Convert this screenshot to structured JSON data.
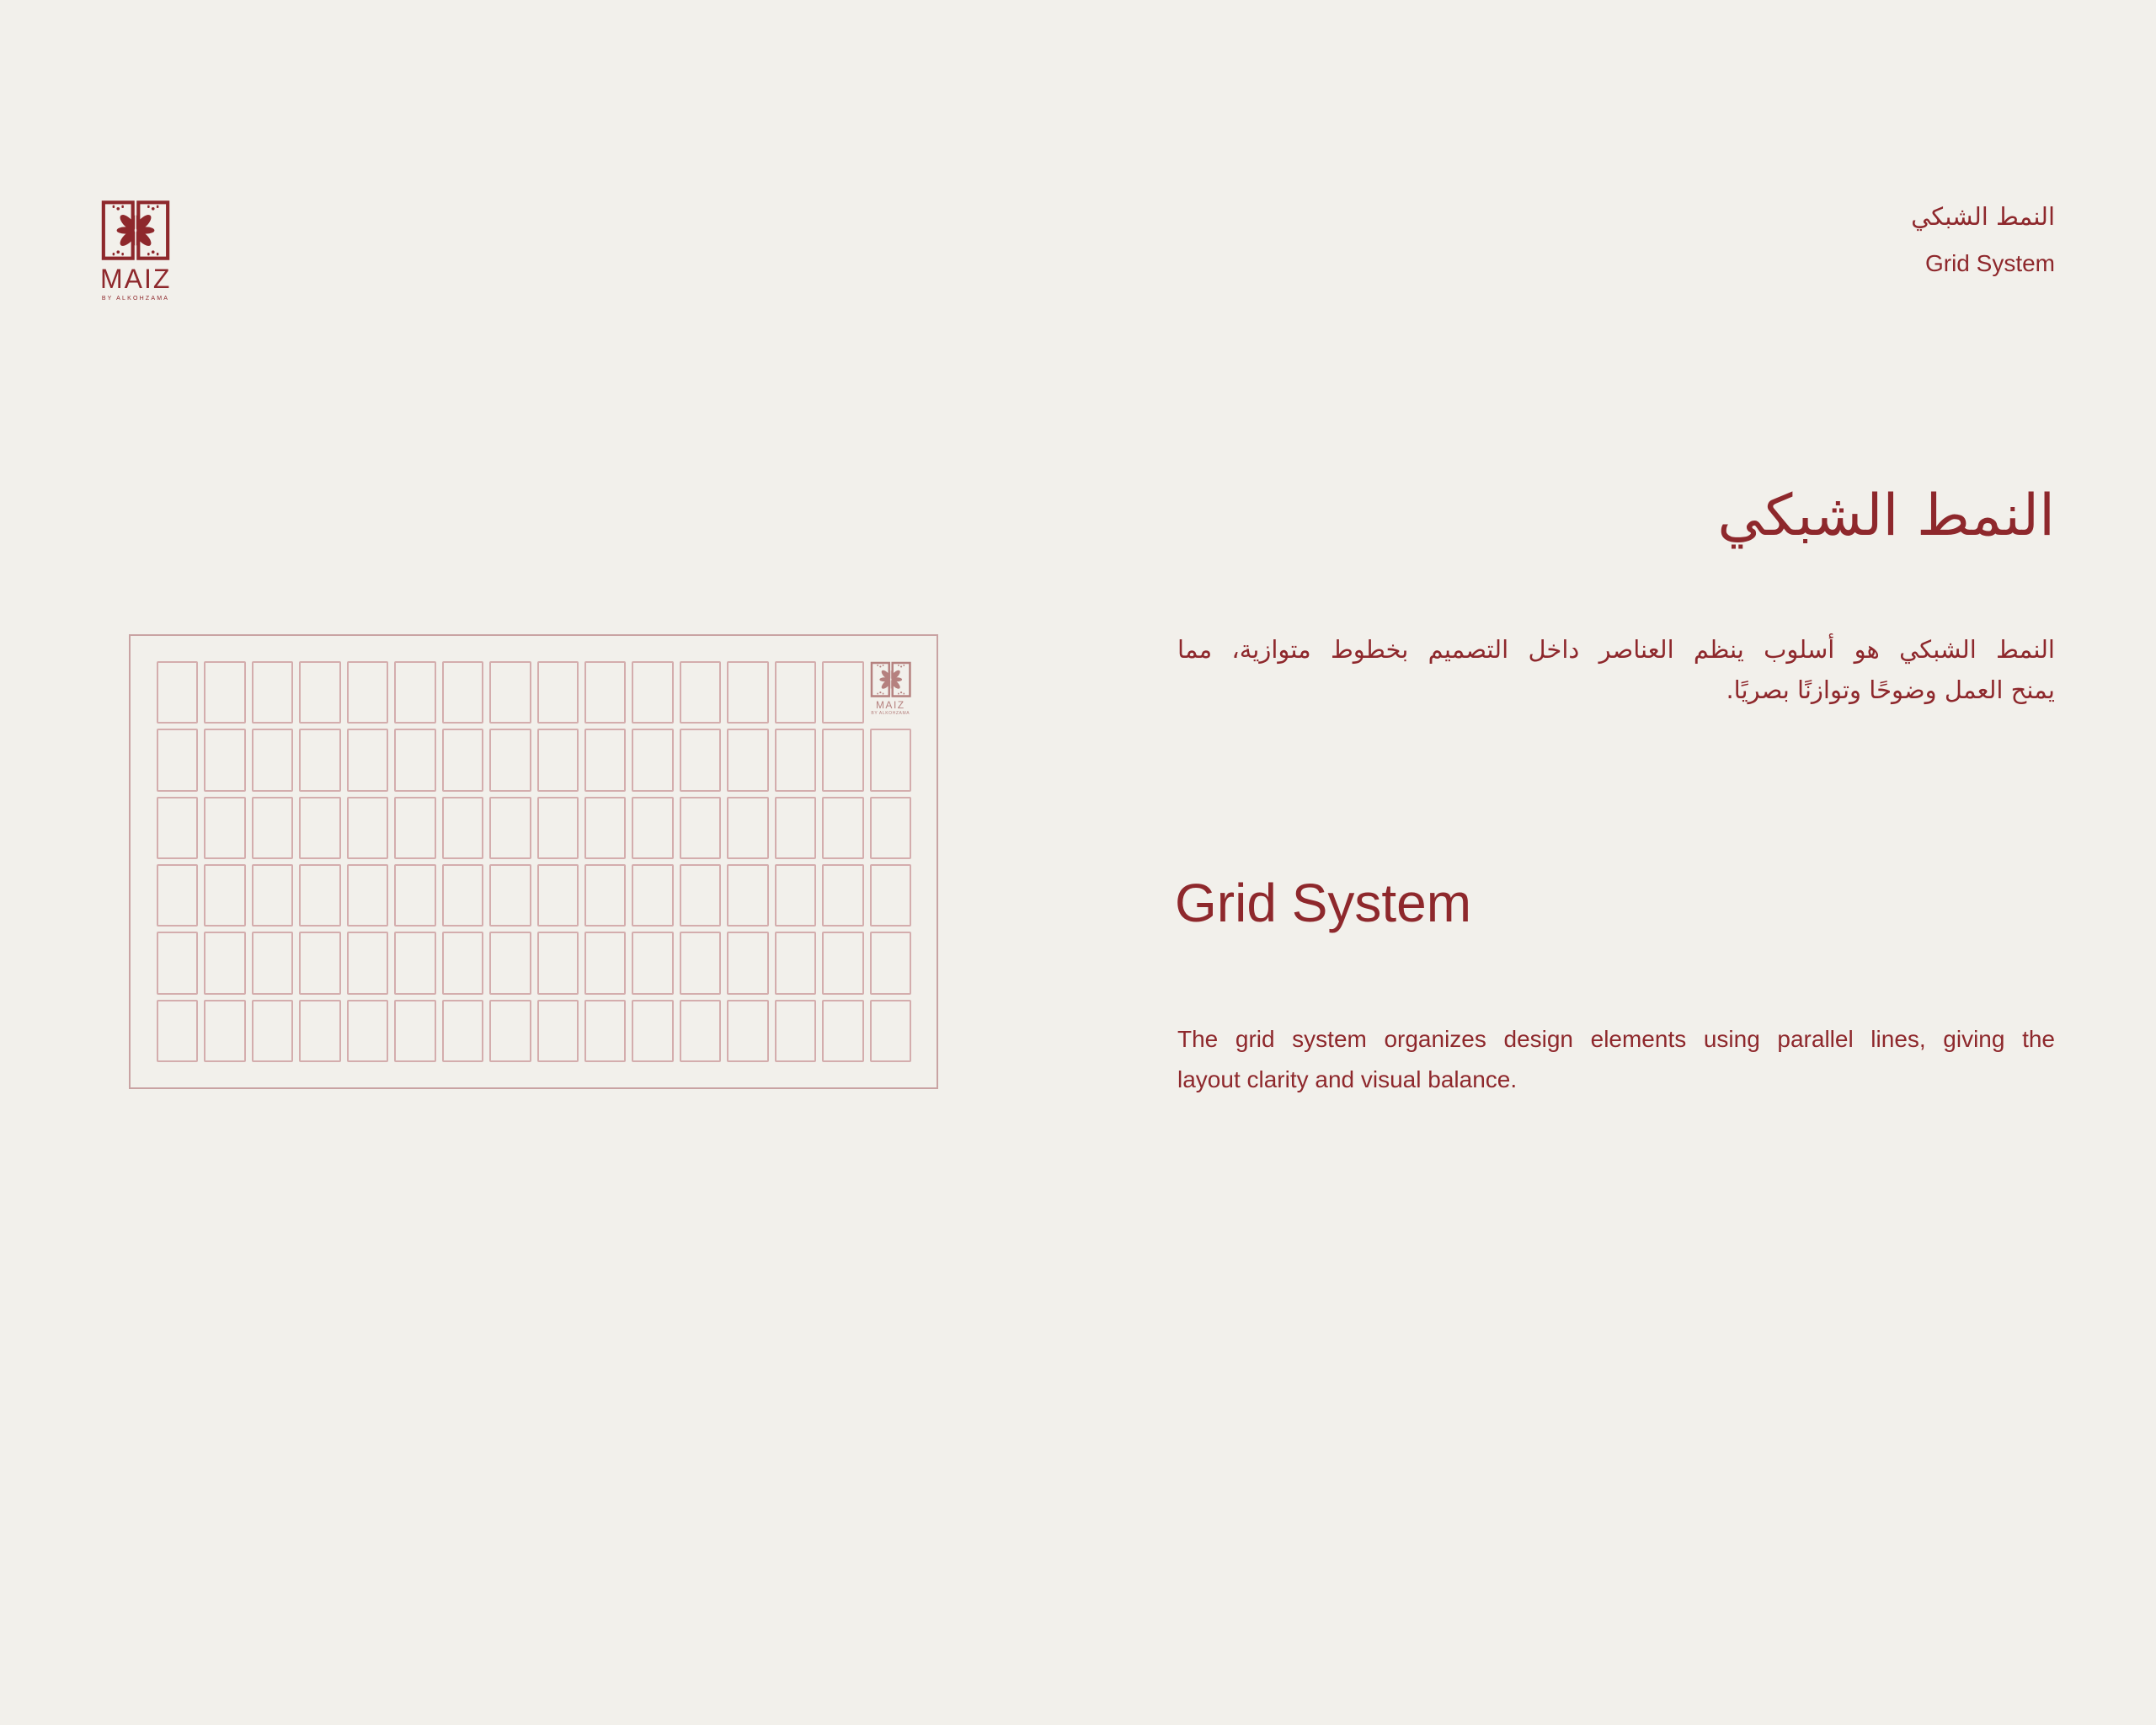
{
  "page": {
    "background_color": "#f2f0eb",
    "accent_color": "#8e282c"
  },
  "brand": {
    "wordmark": "MAIZ",
    "tagline": "BY ALKOHZAMA"
  },
  "page_header": {
    "title_arabic": "النمط الشبكي",
    "title_english": "Grid System"
  },
  "section": {
    "heading_arabic": "النمط الشبكي",
    "body_arabic_lines": [
      "النمط الشبكي هو أسلوب ينظم العناصر داخل التصميم بخطوط متوازية، مما",
      "يمنح العمل وضوحًا وتوازنًا بصريًا."
    ],
    "heading_english": "Grid System",
    "body_english_lines": [
      "The grid system organizes design elements using parallel lines, giving the",
      "layout clarity and visual balance."
    ]
  },
  "grid_illustration": {
    "rows": 6,
    "columns": 16,
    "frame_border_color": "#c9a3a3",
    "cell_border_color": "#d4adad",
    "logo_color": "#b5817f"
  }
}
